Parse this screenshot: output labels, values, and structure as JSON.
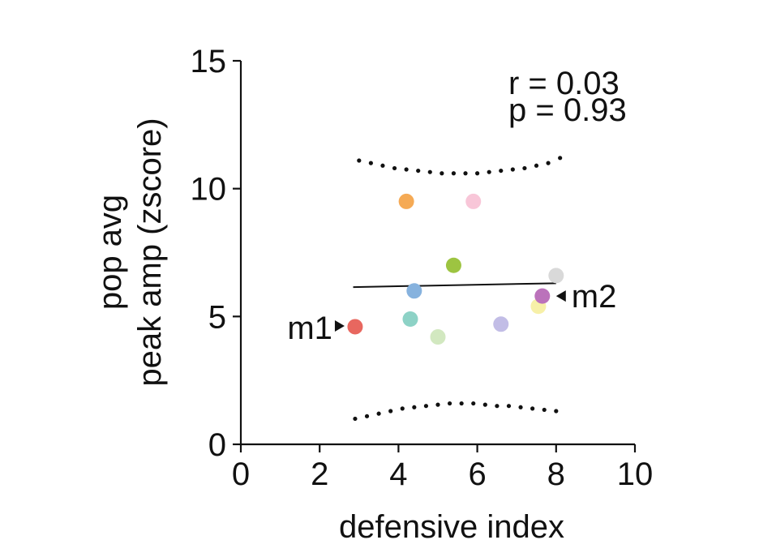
{
  "chart_data": {
    "type": "scatter",
    "xlabel": "defensive index",
    "ylabel_lines": [
      "pop avg",
      "peak amp (zscore)"
    ],
    "xlim": [
      0,
      10
    ],
    "ylim": [
      0,
      15
    ],
    "xticks": [
      "0",
      "2",
      "4",
      "6",
      "8",
      "10"
    ],
    "yticks": [
      "0",
      "5",
      "10",
      "15"
    ],
    "stats": [
      "r = 0.03",
      "p = 0.93"
    ],
    "points": [
      {
        "x": 2.9,
        "y": 4.6,
        "color": "#e8675f",
        "label": "m1"
      },
      {
        "x": 4.2,
        "y": 9.5,
        "color": "#f5aa55"
      },
      {
        "x": 5.9,
        "y": 9.5,
        "color": "#f8c6d8"
      },
      {
        "x": 5.4,
        "y": 7.0,
        "color": "#9dc441"
      },
      {
        "x": 4.4,
        "y": 6.0,
        "color": "#86b2de"
      },
      {
        "x": 4.3,
        "y": 4.9,
        "color": "#8dd2c6"
      },
      {
        "x": 5.0,
        "y": 4.2,
        "color": "#d2e8c0"
      },
      {
        "x": 6.6,
        "y": 4.7,
        "color": "#c2bde6"
      },
      {
        "x": 7.55,
        "y": 5.4,
        "color": "#f7f0a8"
      },
      {
        "x": 7.65,
        "y": 5.8,
        "color": "#bb72bb",
        "label": "m2"
      },
      {
        "x": 8.0,
        "y": 6.6,
        "color": "#d9d9d9"
      }
    ],
    "fit_line": {
      "x": [
        2.85,
        8.0
      ],
      "y": [
        6.15,
        6.3
      ]
    },
    "ci_band": {
      "upper": [
        [
          3.0,
          11.1
        ],
        [
          3.3,
          11.0
        ],
        [
          3.6,
          10.9
        ],
        [
          3.9,
          10.8
        ],
        [
          4.2,
          10.75
        ],
        [
          4.5,
          10.7
        ],
        [
          4.8,
          10.65
        ],
        [
          5.1,
          10.6
        ],
        [
          5.4,
          10.6
        ],
        [
          5.7,
          10.6
        ],
        [
          6.0,
          10.6
        ],
        [
          6.3,
          10.65
        ],
        [
          6.6,
          10.7
        ],
        [
          6.9,
          10.75
        ],
        [
          7.2,
          10.8
        ],
        [
          7.5,
          10.9
        ],
        [
          7.8,
          11.0
        ],
        [
          8.1,
          11.2
        ]
      ],
      "lower": [
        [
          2.9,
          1.0
        ],
        [
          3.2,
          1.1
        ],
        [
          3.5,
          1.2
        ],
        [
          3.8,
          1.3
        ],
        [
          4.1,
          1.4
        ],
        [
          4.4,
          1.45
        ],
        [
          4.7,
          1.5
        ],
        [
          5.0,
          1.55
        ],
        [
          5.3,
          1.6
        ],
        [
          5.6,
          1.6
        ],
        [
          5.9,
          1.6
        ],
        [
          6.2,
          1.55
        ],
        [
          6.5,
          1.5
        ],
        [
          6.8,
          1.5
        ],
        [
          7.1,
          1.45
        ],
        [
          7.4,
          1.4
        ],
        [
          7.7,
          1.35
        ],
        [
          8.0,
          1.3
        ]
      ]
    },
    "grid": false,
    "legend": "none"
  }
}
